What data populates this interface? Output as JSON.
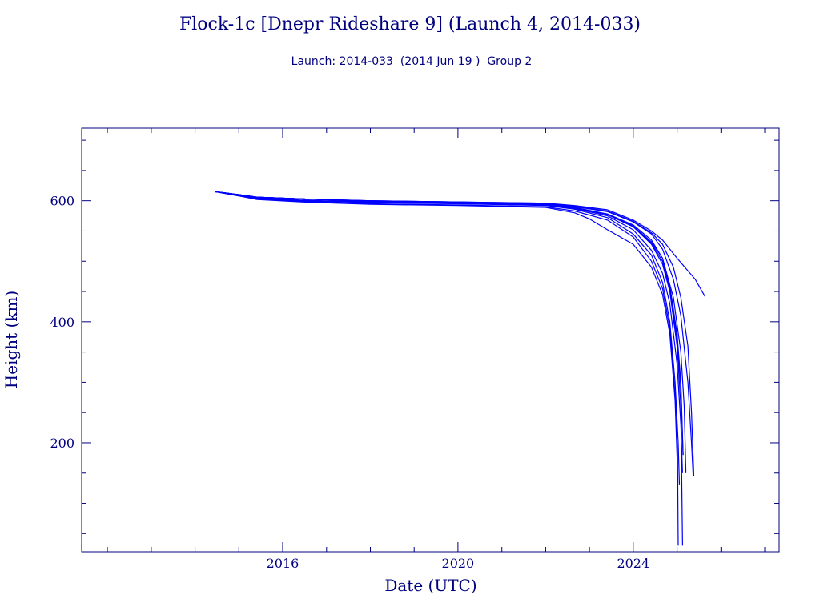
{
  "chart_data": {
    "type": "line",
    "title": "Flock-1c [Dnepr Rideshare 9] (Launch 4, 2014-033)",
    "subtitle": "Launch: 2014-033  (2014 Jun 19 )  Group 2",
    "xlabel": "Date (UTC)",
    "ylabel": "Height (km)",
    "xlim": [
      "2011-06-01",
      "2027-05-01"
    ],
    "ylim": [
      20,
      720
    ],
    "x_ticks": [
      {
        "value": "2016-01-01",
        "label": "2016"
      },
      {
        "value": "2020-01-01",
        "label": "2020"
      },
      {
        "value": "2024-01-01",
        "label": "2024"
      }
    ],
    "y_ticks": [
      {
        "value": 200,
        "label": "200"
      },
      {
        "value": 400,
        "label": "400"
      },
      {
        "value": 600,
        "label": "600"
      }
    ],
    "grid": false,
    "line_color": "#0000ff",
    "axis_color": "#00007f",
    "series": [
      {
        "values": [
          [
            "2014-06-20",
            615
          ],
          [
            "2015-01-01",
            610
          ],
          [
            "2015-06-01",
            606
          ],
          [
            "2016-06-01",
            603
          ],
          [
            "2018-01-01",
            600
          ],
          [
            "2020-01-01",
            598
          ],
          [
            "2022-01-01",
            595
          ],
          [
            "2022-09-01",
            590
          ],
          [
            "2023-06-01",
            582
          ],
          [
            "2024-01-01",
            565
          ],
          [
            "2024-06-01",
            545
          ],
          [
            "2024-09-01",
            520
          ],
          [
            "2024-12-01",
            470
          ],
          [
            "2025-02-01",
            410
          ],
          [
            "2025-04-01",
            300
          ],
          [
            "2025-05-01",
            200
          ],
          [
            "2025-05-15",
            145
          ]
        ]
      },
      {
        "values": [
          [
            "2014-06-20",
            615
          ],
          [
            "2015-01-01",
            610
          ],
          [
            "2015-06-01",
            606
          ],
          [
            "2016-06-01",
            603
          ],
          [
            "2018-01-01",
            600
          ],
          [
            "2020-01-01",
            598
          ],
          [
            "2022-01-01",
            596
          ],
          [
            "2022-09-01",
            592
          ],
          [
            "2023-06-01",
            585
          ],
          [
            "2024-01-01",
            568
          ],
          [
            "2024-06-01",
            550
          ],
          [
            "2024-09-01",
            535
          ],
          [
            "2025-01-01",
            505
          ],
          [
            "2025-06-01",
            470
          ],
          [
            "2025-08-20",
            442
          ]
        ]
      },
      {
        "values": [
          [
            "2014-06-20",
            615
          ],
          [
            "2015-01-01",
            610
          ],
          [
            "2015-06-01",
            606
          ],
          [
            "2016-06-01",
            603
          ],
          [
            "2018-01-01",
            600
          ],
          [
            "2020-01-01",
            598
          ],
          [
            "2022-01-01",
            596
          ],
          [
            "2022-09-01",
            591
          ],
          [
            "2023-06-01",
            583
          ],
          [
            "2024-01-01",
            566
          ],
          [
            "2024-06-01",
            547
          ],
          [
            "2024-09-01",
            528
          ],
          [
            "2024-12-01",
            490
          ],
          [
            "2025-02-01",
            440
          ],
          [
            "2025-04-01",
            360
          ],
          [
            "2025-05-01",
            250
          ],
          [
            "2025-05-20",
            145
          ]
        ]
      },
      {
        "values": [
          [
            "2014-06-20",
            615
          ],
          [
            "2015-01-01",
            610
          ],
          [
            "2015-06-01",
            606
          ],
          [
            "2016-06-01",
            603
          ],
          [
            "2018-01-01",
            599
          ],
          [
            "2020-01-01",
            597
          ],
          [
            "2022-01-01",
            594
          ],
          [
            "2022-09-01",
            588
          ],
          [
            "2023-06-01",
            578
          ],
          [
            "2024-01-01",
            560
          ],
          [
            "2024-06-01",
            535
          ],
          [
            "2024-09-01",
            505
          ],
          [
            "2024-12-01",
            440
          ],
          [
            "2025-02-01",
            350
          ],
          [
            "2025-03-01",
            260
          ],
          [
            "2025-03-15",
            150
          ]
        ]
      },
      {
        "values": [
          [
            "2014-06-20",
            615
          ],
          [
            "2015-01-01",
            610
          ],
          [
            "2015-06-01",
            606
          ],
          [
            "2016-06-01",
            603
          ],
          [
            "2018-01-01",
            599
          ],
          [
            "2020-01-01",
            597
          ],
          [
            "2022-01-01",
            594
          ],
          [
            "2022-09-01",
            589
          ],
          [
            "2023-06-01",
            578
          ],
          [
            "2024-01-01",
            558
          ],
          [
            "2024-06-01",
            532
          ],
          [
            "2024-09-01",
            505
          ],
          [
            "2024-11-01",
            460
          ],
          [
            "2025-01-01",
            380
          ],
          [
            "2025-02-01",
            300
          ],
          [
            "2025-02-20",
            180
          ]
        ]
      },
      {
        "values": [
          [
            "2014-06-20",
            615
          ],
          [
            "2015-01-01",
            610
          ],
          [
            "2015-06-01",
            606
          ],
          [
            "2016-06-01",
            603
          ],
          [
            "2018-01-01",
            599
          ],
          [
            "2020-01-01",
            597
          ],
          [
            "2022-01-01",
            594
          ],
          [
            "2022-09-01",
            588
          ],
          [
            "2023-06-01",
            578
          ],
          [
            "2024-01-01",
            558
          ],
          [
            "2024-06-01",
            530
          ],
          [
            "2024-09-01",
            500
          ],
          [
            "2024-11-01",
            455
          ],
          [
            "2025-01-01",
            370
          ],
          [
            "2025-02-01",
            290
          ],
          [
            "2025-02-20",
            180
          ]
        ]
      },
      {
        "values": [
          [
            "2014-06-20",
            615
          ],
          [
            "2015-01-01",
            610
          ],
          [
            "2015-06-01",
            606
          ],
          [
            "2016-06-01",
            603
          ],
          [
            "2018-01-01",
            599
          ],
          [
            "2020-01-01",
            597
          ],
          [
            "2022-01-01",
            594
          ],
          [
            "2022-09-01",
            588
          ],
          [
            "2023-06-01",
            577
          ],
          [
            "2024-01-01",
            557
          ],
          [
            "2024-06-01",
            528
          ],
          [
            "2024-09-01",
            495
          ],
          [
            "2024-11-01",
            450
          ],
          [
            "2025-01-01",
            360
          ],
          [
            "2025-02-01",
            260
          ],
          [
            "2025-02-15",
            30
          ]
        ]
      },
      {
        "values": [
          [
            "2014-06-20",
            615
          ],
          [
            "2015-01-01",
            609
          ],
          [
            "2015-06-01",
            605
          ],
          [
            "2016-06-01",
            601
          ],
          [
            "2018-01-01",
            598
          ],
          [
            "2020-01-01",
            596
          ],
          [
            "2022-01-01",
            593
          ],
          [
            "2022-09-01",
            587
          ],
          [
            "2023-06-01",
            575
          ],
          [
            "2024-01-01",
            552
          ],
          [
            "2024-06-01",
            518
          ],
          [
            "2024-09-01",
            480
          ],
          [
            "2024-11-01",
            430
          ],
          [
            "2025-01-01",
            330
          ],
          [
            "2025-02-01",
            230
          ],
          [
            "2025-02-15",
            150
          ]
        ]
      },
      {
        "values": [
          [
            "2014-06-20",
            615
          ],
          [
            "2015-01-01",
            609
          ],
          [
            "2015-06-01",
            604
          ],
          [
            "2016-06-01",
            600
          ],
          [
            "2018-01-01",
            597
          ],
          [
            "2020-01-01",
            595
          ],
          [
            "2022-01-01",
            592
          ],
          [
            "2022-09-01",
            586
          ],
          [
            "2023-06-01",
            572
          ],
          [
            "2024-01-01",
            545
          ],
          [
            "2024-06-01",
            510
          ],
          [
            "2024-09-01",
            465
          ],
          [
            "2024-11-01",
            400
          ],
          [
            "2024-12-15",
            300
          ],
          [
            "2025-01-10",
            200
          ],
          [
            "2025-01-20",
            130
          ]
        ]
      },
      {
        "values": [
          [
            "2014-06-20",
            615
          ],
          [
            "2015-01-01",
            608
          ],
          [
            "2015-06-01",
            603
          ],
          [
            "2016-06-01",
            599
          ],
          [
            "2018-01-01",
            595
          ],
          [
            "2020-01-01",
            593
          ],
          [
            "2022-01-01",
            590
          ],
          [
            "2022-09-01",
            583
          ],
          [
            "2023-06-01",
            568
          ],
          [
            "2024-01-01",
            540
          ],
          [
            "2024-06-01",
            500
          ],
          [
            "2024-09-01",
            455
          ],
          [
            "2024-11-01",
            390
          ],
          [
            "2024-12-15",
            280
          ],
          [
            "2025-01-05",
            180
          ],
          [
            "2025-01-10",
            30
          ]
        ]
      },
      {
        "values": [
          [
            "2014-06-20",
            615
          ],
          [
            "2015-01-01",
            608
          ],
          [
            "2015-06-01",
            602
          ],
          [
            "2016-06-01",
            598
          ],
          [
            "2018-01-01",
            594
          ],
          [
            "2020-01-01",
            592
          ],
          [
            "2022-01-01",
            589
          ],
          [
            "2022-09-01",
            580
          ],
          [
            "2023-01-01",
            570
          ],
          [
            "2023-06-01",
            552
          ],
          [
            "2024-01-01",
            528
          ],
          [
            "2024-06-01",
            490
          ],
          [
            "2024-09-01",
            445
          ],
          [
            "2024-11-01",
            380
          ],
          [
            "2024-12-15",
            270
          ],
          [
            "2025-01-01",
            175
          ]
        ]
      }
    ]
  }
}
